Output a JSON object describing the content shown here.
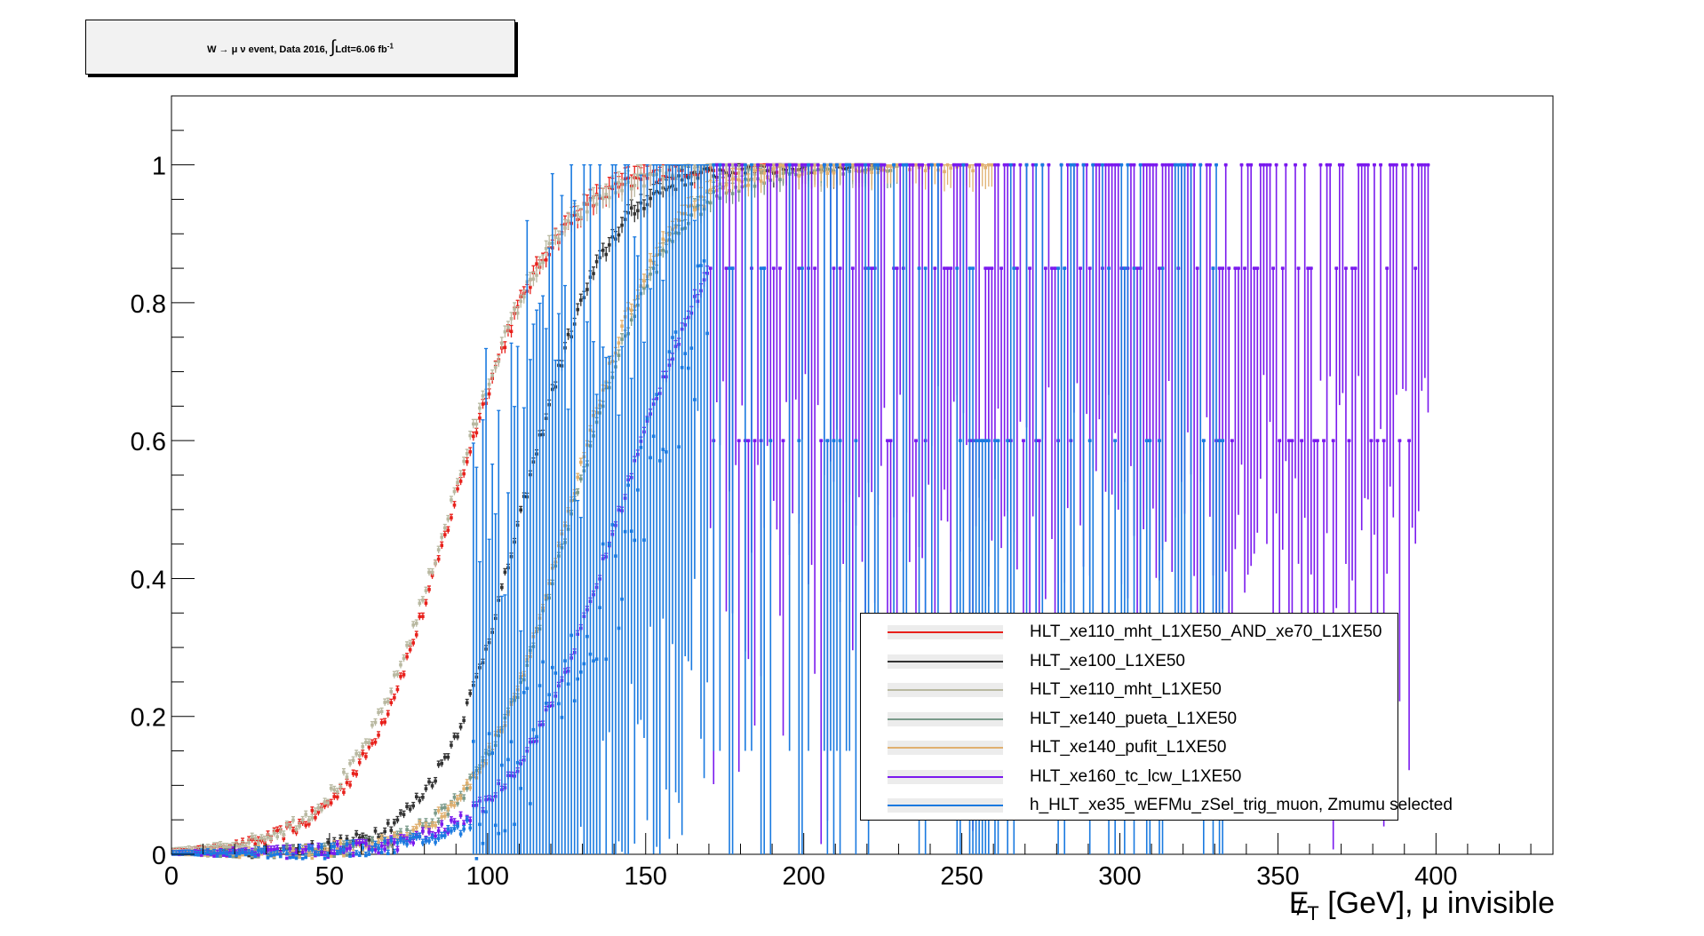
{
  "title": {
    "prefix": "W",
    "arrow": "→",
    "mu": "μ",
    "nu": "ν",
    "event_text": "event, Data 2016,",
    "integral": "∫",
    "lumi_text": "Ldt=6.06 fb",
    "lumi_sup": "-1"
  },
  "chart_data": {
    "type": "scatter",
    "xlabel": "E̸T [GeV], μ invisible",
    "xlabel_main": "E",
    "xlabel_sub": "T",
    "xlabel_rest": " [GeV], μ invisible",
    "xlim": [
      0,
      437
    ],
    "ylim": [
      0,
      1.1
    ],
    "x_ticks": [
      0,
      50,
      100,
      150,
      200,
      250,
      300,
      350,
      400
    ],
    "y_ticks": [
      0,
      0.2,
      0.4,
      0.6,
      0.8,
      1
    ],
    "grid": false,
    "legend_position": "bottom-right",
    "series": [
      {
        "name": "HLT_xe110_mht_L1XE50_AND_xe70_L1XE50",
        "color": "#e8201b",
        "midpoint": 89,
        "width": 15.5,
        "xmin": 0,
        "xmax": 200
      },
      {
        "name": "HLT_xe100_L1XE50",
        "color": "#333333",
        "midpoint": 111,
        "width": 13.5,
        "xmin": 0,
        "xmax": 225
      },
      {
        "name": "HLT_xe110_mht_L1XE50",
        "color": "#b8b8a0",
        "midpoint": 88,
        "width": 16,
        "xmin": 0,
        "xmax": 225
      },
      {
        "name": "HLT_xe140_pueta_L1XE50",
        "color": "#7a9a8a",
        "midpoint": 127,
        "width": 15,
        "xmin": 0,
        "xmax": 230
      },
      {
        "name": "HLT_xe140_pufit_L1XE50",
        "color": "#e0b070",
        "midpoint": 126,
        "width": 14.5,
        "xmin": 0,
        "xmax": 260
      },
      {
        "name": "HLT_xe160_tc_lcw_L1XE50",
        "color": "#7a1aee",
        "midpoint": 142,
        "width": 17,
        "xmin": 0,
        "xmax": 398
      },
      {
        "name": "h_HLT_xe35_wEFMu_zSel_trig_muon, Zmumu selected",
        "color": "#1a7ae0",
        "midpoint": 150,
        "width": 18,
        "xmin": 0,
        "xmax": 335
      }
    ]
  }
}
